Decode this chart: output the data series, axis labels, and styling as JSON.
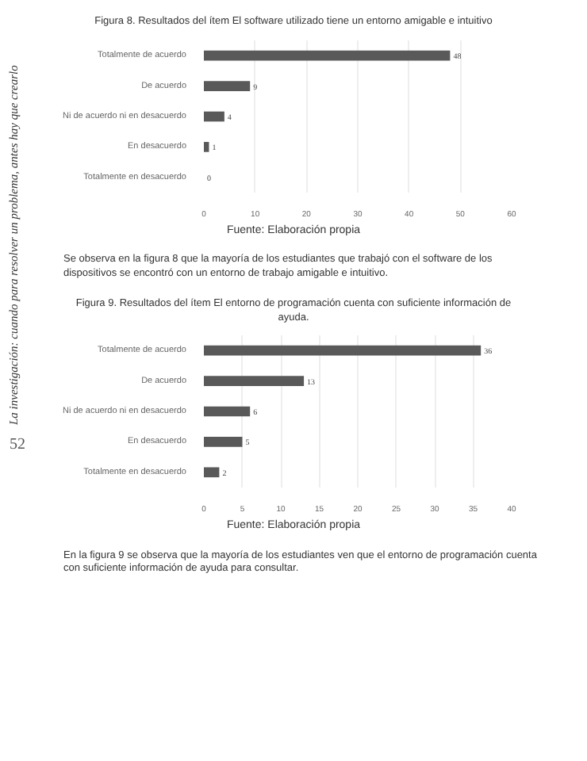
{
  "chart_data": [
    {
      "type": "bar",
      "orientation": "horizontal",
      "title": "Figura 8. Resultados del ítem El software utilizado tiene un entorno amigable e intuitivo",
      "categories": [
        "Totalmente de acuerdo",
        "De acuerdo",
        "Ni de acuerdo ni en desacuerdo",
        "En desacuerdo",
        "Totalmente en desacuerdo"
      ],
      "values": [
        48,
        9,
        4,
        1,
        0
      ],
      "color": "#595959",
      "xlim": [
        0,
        60
      ],
      "xticks": [
        0,
        10,
        20,
        30,
        40,
        50,
        60
      ],
      "grid": "x",
      "data_labels": true,
      "annotations": [
        "Fuente: Elaboración propia",
        "Se observa en la figura 8 que la mayoría de los estudiantes que trabajó con el software de los dispositivos se encontró con un entorno de trabajo amigable e intuitivo.",
        "La investigación: cuando para resolver un problema, antes hay que crearlo",
        "52"
      ]
    },
    {
      "type": "bar",
      "orientation": "horizontal",
      "title": "Figura 9. Resultados del ítem El entorno de programación cuenta con suficiente información de ayuda.",
      "categories": [
        "Totalmente de acuerdo",
        "De acuerdo",
        "Ni de acuerdo ni en desacuerdo",
        "En desacuerdo",
        "Totalmente en desacuerdo"
      ],
      "values": [
        36,
        13,
        6,
        5,
        2
      ],
      "color": "#595959",
      "xlim": [
        0,
        40
      ],
      "xticks": [
        0,
        5,
        10,
        15,
        20,
        25,
        30,
        35,
        40
      ],
      "grid": "x",
      "data_labels": true,
      "annotations": [
        "Fuente: Elaboración propia",
        "En la figura 9 se observa que la mayoría de los estudiantes ven que el entorno de programación cuenta con suficiente información de ayuda para consultar."
      ]
    }
  ]
}
